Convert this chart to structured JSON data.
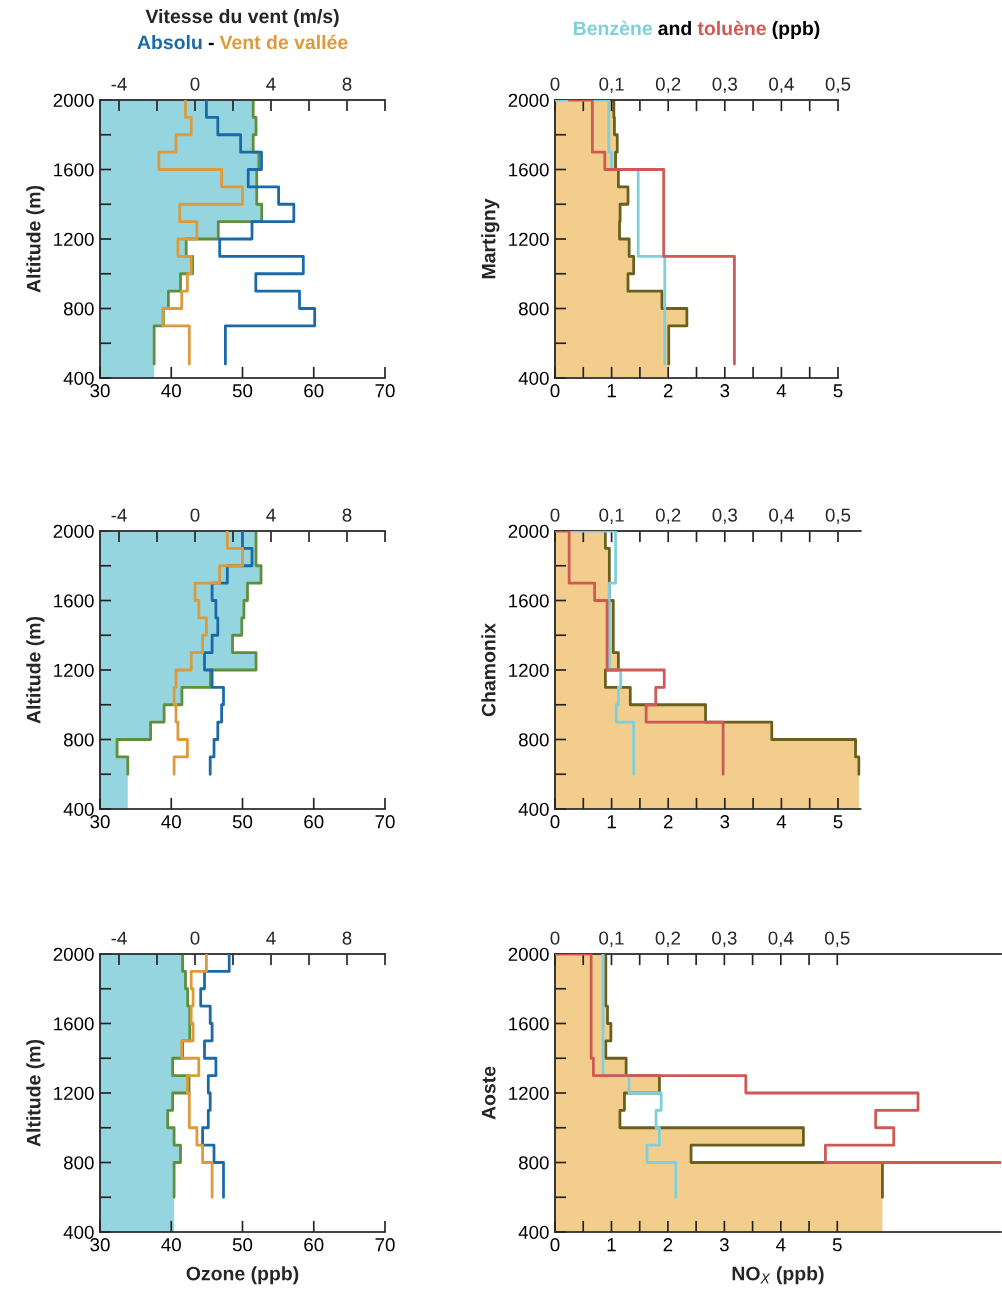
{
  "chart_data": [
    {
      "type": "step",
      "orientation": "horizontal",
      "x2label": "Vitesse du vent (m/s)",
      "ylabel": "Altitude (m)",
      "legend": "top",
      "annotations": [
        "-"
      ],
      "xlim": [
        30,
        70
      ],
      "xticks": [
        30,
        40,
        50,
        60,
        70
      ],
      "x2lim": [
        -5,
        10
      ],
      "x2ticks": [
        -4,
        {
          "value": -2,
          "label": null
        },
        0,
        {
          "value": 2,
          "label": null
        },
        4,
        {
          "value": 6,
          "label": null
        },
        8,
        {
          "value": 10,
          "label": null
        }
      ],
      "ylim": [
        400,
        2000
      ],
      "yticks": [
        400,
        {
          "value": 600,
          "label": null
        },
        800,
        {
          "value": 1000,
          "label": null
        },
        1200,
        {
          "value": 1400,
          "label": null
        },
        1600,
        {
          "value": 1800,
          "label": null
        },
        2000
      ],
      "series": [
        {
          "type": "area",
          "color": "#95d5e0",
          "values": [
            51.5,
            51.9,
            51.5,
            52.3,
            52.0,
            52.0,
            52.7,
            46.6,
            42.1,
            43.0,
            41.3,
            39.6,
            38.9,
            37.6,
            37.6
          ],
          "x": [
            2000,
            1900,
            1800,
            1700,
            1600,
            1500,
            1400,
            1300,
            1200,
            1100,
            1000,
            900,
            800,
            700,
            400
          ]
        },
        {
          "color": "#5f8f3a",
          "values": [
            51.5,
            51.9,
            51.5,
            52.3,
            52.0,
            52.0,
            52.7,
            46.6,
            42.1,
            43.0,
            41.3,
            39.6,
            38.9,
            37.6,
            37.6
          ],
          "x": [
            2000,
            1900,
            1800,
            1700,
            1600,
            1500,
            1400,
            1300,
            1200,
            1100,
            1000,
            900,
            800,
            700,
            480
          ]
        },
        {
          "name": "Absolu",
          "axis": "x2",
          "color": "#1a6aa8",
          "values": [
            0.6,
            1.2,
            2.4,
            3.5,
            2.8,
            4.4,
            5.2,
            3.0,
            1.3,
            5.7,
            3.2,
            5.5,
            6.3,
            1.6,
            1.6
          ],
          "x": [
            2000,
            1900,
            1800,
            1700,
            1600,
            1500,
            1400,
            1300,
            1200,
            1100,
            1000,
            900,
            800,
            700,
            480
          ]
        },
        {
          "name": "Vent de vallée",
          "axis": "x2",
          "color": "#dd9a3c",
          "values": [
            -0.5,
            -0.2,
            -1.0,
            -1.9,
            1.4,
            2.5,
            -0.8,
            0.1,
            -0.9,
            -0.2,
            -0.4,
            -0.7,
            -1.7,
            -0.3,
            -0.3
          ],
          "x": [
            2000,
            1900,
            1800,
            1700,
            1600,
            1500,
            1400,
            1300,
            1200,
            1100,
            1000,
            900,
            800,
            700,
            480
          ]
        }
      ]
    },
    {
      "type": "step",
      "orientation": "horizontal",
      "ylabel": "Martigny",
      "legend": "top",
      "annotations": [
        "and",
        "(ppb)"
      ],
      "xlim": [
        0,
        5
      ],
      "xticks": [
        0,
        {
          "value": 0.5,
          "label": null
        },
        1,
        {
          "value": 1.5,
          "label": null
        },
        2,
        {
          "value": 2.5,
          "label": null
        },
        3,
        {
          "value": 3.5,
          "label": null
        },
        4,
        {
          "value": 4.5,
          "label": null
        },
        5
      ],
      "x2lim": [
        0,
        0.5
      ],
      "x2ticks": [
        0,
        {
          "value": 0.05,
          "label": null
        },
        {
          "value": 0.1,
          "label": "0,1"
        },
        {
          "value": 0.15,
          "label": null
        },
        {
          "value": 0.2,
          "label": "0,2"
        },
        {
          "value": 0.25,
          "label": null
        },
        {
          "value": 0.3,
          "label": "0,3"
        },
        {
          "value": 0.35,
          "label": null
        },
        {
          "value": 0.4,
          "label": "0,4"
        },
        {
          "value": 0.45,
          "label": null
        },
        {
          "value": 0.5,
          "label": "0,5"
        }
      ],
      "ylim": [
        400,
        2000
      ],
      "yticks": [
        400,
        {
          "value": 600,
          "label": null
        },
        800,
        {
          "value": 1000,
          "label": null
        },
        1200,
        {
          "value": 1400,
          "label": null
        },
        1600,
        {
          "value": 1800,
          "label": null
        },
        2000
      ],
      "series": [
        {
          "type": "area",
          "color": "#f3cd8c",
          "values": [
            1.04,
            1.05,
            1.1,
            1.07,
            1.12,
            1.29,
            1.15,
            1.14,
            1.31,
            1.39,
            1.29,
            1.89,
            2.33,
            2.01,
            2.01
          ],
          "x": [
            2000,
            1900,
            1800,
            1700,
            1600,
            1500,
            1400,
            1300,
            1200,
            1100,
            1000,
            900,
            800,
            700,
            400
          ]
        },
        {
          "color": "#6b5f1e",
          "values": [
            1.04,
            1.05,
            1.1,
            1.07,
            1.12,
            1.29,
            1.15,
            1.14,
            1.31,
            1.39,
            1.29,
            1.89,
            2.33,
            2.01,
            2.01
          ],
          "x": [
            2000,
            1900,
            1800,
            1700,
            1600,
            1500,
            1400,
            1300,
            1200,
            1100,
            1000,
            900,
            800,
            700,
            480
          ]
        },
        {
          "name": "Benzène",
          "axis": "x2",
          "color": "#7fcfdc",
          "values": [
            0,
            0.095,
            0.1,
            0.147,
            0.194,
            0.194
          ],
          "x": [
            2000,
            2000,
            1700,
            1600,
            1100,
            480
          ]
        },
        {
          "name": "toluène",
          "axis": "x2",
          "color": "#cf5a55",
          "values": [
            0.025,
            0.066,
            0.088,
            0.192,
            0.317,
            0.317
          ],
          "x": [
            2000,
            2000,
            1700,
            1600,
            1100,
            480
          ]
        }
      ]
    },
    {
      "type": "step",
      "orientation": "horizontal",
      "ylabel": "Altitude (m)",
      "xlim": [
        30,
        70
      ],
      "xticks": [
        30,
        40,
        50,
        60,
        70
      ],
      "x2lim": [
        -5,
        10
      ],
      "x2ticks": [
        -4,
        {
          "value": -2,
          "label": null
        },
        0,
        {
          "value": 2,
          "label": null
        },
        4,
        {
          "value": 6,
          "label": null
        },
        8,
        {
          "value": 10,
          "label": null
        }
      ],
      "ylim": [
        400,
        2000
      ],
      "yticks": [
        400,
        {
          "value": 600,
          "label": null
        },
        800,
        {
          "value": 1000,
          "label": null
        },
        1200,
        {
          "value": 1400,
          "label": null
        },
        1600,
        {
          "value": 1800,
          "label": null
        },
        2000
      ],
      "series": [
        {
          "type": "area",
          "color": "#95d5e0",
          "values": [
            51.9,
            52.6,
            50.7,
            50.2,
            49.9,
            48.6,
            51.9,
            45.5,
            41.5,
            39.0,
            37.1,
            32.4,
            33.9,
            33.9
          ],
          "x": [
            2000,
            1800,
            1700,
            1600,
            1500,
            1400,
            1300,
            1200,
            1100,
            1000,
            900,
            800,
            700,
            400
          ]
        },
        {
          "color": "#5f8f3a",
          "values": [
            51.9,
            52.6,
            50.7,
            50.2,
            49.9,
            48.6,
            51.9,
            45.5,
            41.5,
            39.0,
            37.1,
            32.4,
            33.9,
            33.9
          ],
          "x": [
            2000,
            1800,
            1700,
            1600,
            1500,
            1400,
            1300,
            1200,
            1100,
            1000,
            900,
            800,
            700,
            600
          ]
        },
        {
          "axis": "x2",
          "color": "#1a6aa8",
          "values": [
            2.5,
            3.0,
            1.7,
            0.9,
            1.1,
            1.2,
            0.9,
            0.5,
            0.9,
            1.5,
            1.4,
            1.2,
            1.0,
            0.8,
            0.8
          ],
          "x": [
            2000,
            1900,
            1800,
            1700,
            1600,
            1500,
            1400,
            1300,
            1200,
            1100,
            1000,
            900,
            800,
            700,
            600
          ]
        },
        {
          "axis": "x2",
          "color": "#dd9a3c",
          "values": [
            1.7,
            2.5,
            1.3,
            0.0,
            0.2,
            0.6,
            0.4,
            -0.2,
            -1.0,
            -1.1,
            -1.0,
            -0.9,
            -0.4,
            -1.1,
            -1.1
          ],
          "x": [
            2000,
            1900,
            1800,
            1700,
            1600,
            1500,
            1400,
            1300,
            1200,
            1100,
            1000,
            900,
            800,
            700,
            600
          ]
        }
      ]
    },
    {
      "type": "step",
      "orientation": "horizontal",
      "ylabel": "Chamonix",
      "xlim": [
        0,
        5.4
      ],
      "xticks": [
        0,
        {
          "value": 0.5,
          "label": null
        },
        1,
        {
          "value": 1.5,
          "label": null
        },
        2,
        {
          "value": 2.5,
          "label": null
        },
        3,
        {
          "value": 3.5,
          "label": null
        },
        4,
        {
          "value": 4.5,
          "label": null
        },
        5
      ],
      "x2lim": [
        0,
        0.54
      ],
      "x2ticks": [
        0,
        {
          "value": 0.05,
          "label": null
        },
        {
          "value": 0.1,
          "label": "0,1"
        },
        {
          "value": 0.15,
          "label": null
        },
        {
          "value": 0.2,
          "label": "0,2"
        },
        {
          "value": 0.25,
          "label": null
        },
        {
          "value": 0.3,
          "label": "0,3"
        },
        {
          "value": 0.35,
          "label": null
        },
        {
          "value": 0.4,
          "label": "0,4"
        },
        {
          "value": 0.45,
          "label": null
        },
        {
          "value": 0.5,
          "label": "0,5"
        }
      ],
      "ylim": [
        400,
        2000
      ],
      "yticks": [
        400,
        {
          "value": 600,
          "label": null
        },
        800,
        {
          "value": 1000,
          "label": null
        },
        1200,
        {
          "value": 1400,
          "label": null
        },
        1600,
        {
          "value": 1800,
          "label": null
        },
        2000
      ],
      "series": [
        {
          "type": "area",
          "color": "#f3cd8c",
          "values": [
            0.89,
            0.96,
            1.03,
            1.12,
            0.89,
            1.33,
            2.66,
            3.83,
            5.31,
            5.37,
            5.37
          ],
          "x": [
            2000,
            1900,
            1600,
            1300,
            1200,
            1100,
            1000,
            900,
            800,
            700,
            400
          ]
        },
        {
          "color": "#6b5f1e",
          "values": [
            0.89,
            0.96,
            1.03,
            1.12,
            0.89,
            1.33,
            2.66,
            3.83,
            5.31,
            5.37,
            5.37
          ],
          "x": [
            2000,
            1900,
            1600,
            1300,
            1200,
            1100,
            1000,
            900,
            800,
            700,
            600
          ]
        },
        {
          "axis": "x2",
          "color": "#7fcfdc",
          "values": [
            0.026,
            0.107,
            0.096,
            0.116,
            0.112,
            0.108,
            0.139,
            0.139
          ],
          "x": [
            2000,
            2000,
            1700,
            1200,
            1100,
            1000,
            900,
            600
          ]
        },
        {
          "axis": "x2",
          "color": "#cf5a55",
          "values": [
            0,
            0.025,
            0.07,
            0.092,
            0.193,
            0.178,
            0.161,
            0.297,
            0.297
          ],
          "x": [
            2000,
            2000,
            1700,
            1600,
            1200,
            1100,
            1000,
            900,
            600
          ]
        }
      ]
    },
    {
      "type": "step",
      "orientation": "horizontal",
      "ylabel": "Altitude (m)",
      "xlabel": "Ozone (ppb)",
      "xlim": [
        30,
        70
      ],
      "xticks": [
        30,
        40,
        50,
        60,
        70
      ],
      "x2lim": [
        -5,
        10
      ],
      "x2ticks": [
        -4,
        {
          "value": -2,
          "label": null
        },
        0,
        {
          "value": 2,
          "label": null
        },
        4,
        {
          "value": 6,
          "label": null
        },
        8,
        {
          "value": 10,
          "label": null
        }
      ],
      "ylim": [
        400,
        2000
      ],
      "yticks": [
        400,
        {
          "value": 600,
          "label": null
        },
        800,
        {
          "value": 1000,
          "label": null
        },
        1200,
        {
          "value": 1400,
          "label": null
        },
        1600,
        {
          "value": 1800,
          "label": null
        },
        2000
      ],
      "series": [
        {
          "type": "area",
          "color": "#95d5e0",
          "values": [
            41.6,
            42.0,
            42.3,
            42.6,
            42.6,
            41.6,
            40.2,
            42.5,
            40.2,
            39.5,
            40.4,
            41.3,
            40.4,
            40.4
          ],
          "x": [
            2000,
            1900,
            1800,
            1700,
            1600,
            1500,
            1400,
            1300,
            1200,
            1100,
            1000,
            900,
            800,
            400
          ]
        },
        {
          "color": "#5f8f3a",
          "values": [
            41.6,
            42.0,
            42.3,
            42.6,
            42.6,
            41.6,
            40.2,
            42.5,
            40.2,
            39.5,
            40.4,
            41.3,
            40.4,
            40.4
          ],
          "x": [
            2000,
            1900,
            1800,
            1700,
            1600,
            1500,
            1400,
            1300,
            1200,
            1100,
            1000,
            900,
            800,
            600
          ]
        },
        {
          "axis": "x2",
          "color": "#1a6aa8",
          "values": [
            1.8,
            0.5,
            0.3,
            0.8,
            0.9,
            0.5,
            1.1,
            0.7,
            0.8,
            0.7,
            0.4,
            1.0,
            1.5,
            1.5
          ],
          "x": [
            2000,
            1900,
            1800,
            1700,
            1600,
            1500,
            1400,
            1300,
            1200,
            1100,
            1000,
            900,
            800,
            600
          ]
        },
        {
          "axis": "x2",
          "color": "#dd9a3c",
          "values": [
            0.6,
            -0.2,
            -0.1,
            -0.2,
            -0.1,
            -0.7,
            0.2,
            -0.4,
            -0.3,
            -0.3,
            0.1,
            0.4,
            0.9,
            0.9
          ],
          "x": [
            2000,
            1900,
            1800,
            1700,
            1600,
            1500,
            1400,
            1300,
            1200,
            1100,
            1000,
            900,
            800,
            600
          ]
        }
      ]
    },
    {
      "type": "step",
      "orientation": "horizontal",
      "ylabel": "Aoste",
      "xlabel": "NO$_{X}$ (ppb)",
      "xlim": [
        0,
        7.9
      ],
      "xticks": [
        0,
        {
          "value": 0.5,
          "label": null
        },
        1,
        {
          "value": 1.5,
          "label": null
        },
        2,
        {
          "value": 2.5,
          "label": null
        },
        3,
        {
          "value": 3.5,
          "label": null
        },
        4,
        {
          "value": 4.5,
          "label": null
        },
        5
      ],
      "x2lim": [
        0,
        0.79
      ],
      "x2ticks": [
        0,
        {
          "value": 0.05,
          "label": null
        },
        {
          "value": 0.1,
          "label": "0,1"
        },
        {
          "value": 0.15,
          "label": null
        },
        {
          "value": 0.2,
          "label": "0,2"
        },
        {
          "value": 0.25,
          "label": null
        },
        {
          "value": 0.3,
          "label": "0,3"
        },
        {
          "value": 0.35,
          "label": null
        },
        {
          "value": 0.4,
          "label": "0,4"
        },
        {
          "value": 0.45,
          "label": null
        },
        {
          "value": 0.5,
          "label": "0,5"
        }
      ],
      "ylim": [
        400,
        2000
      ],
      "yticks": [
        400,
        {
          "value": 600,
          "label": null
        },
        800,
        {
          "value": 1000,
          "label": null
        },
        1200,
        {
          "value": 1400,
          "label": null
        },
        1600,
        {
          "value": 1800,
          "label": null
        },
        2000
      ],
      "series": [
        {
          "type": "area",
          "color": "#f3cd8c",
          "values": [
            0.9,
            0.93,
            0.99,
            0.9,
            1.26,
            1.85,
            1.23,
            1.15,
            4.4,
            2.41,
            5.8,
            5.8
          ],
          "x": [
            2000,
            1700,
            1600,
            1500,
            1400,
            1300,
            1200,
            1100,
            1000,
            900,
            800,
            400
          ]
        },
        {
          "color": "#6b5f1e",
          "values": [
            0.9,
            0.93,
            0.99,
            0.9,
            1.26,
            1.85,
            1.23,
            1.15,
            4.4,
            2.41,
            5.8,
            5.8
          ],
          "x": [
            2000,
            1700,
            1600,
            1500,
            1400,
            1300,
            1200,
            1100,
            1000,
            900,
            800,
            600
          ]
        },
        {
          "axis": "x2",
          "color": "#7fcfdc",
          "values": [
            0.085,
            0.131,
            0.188,
            0.179,
            0.185,
            0.163,
            0.214,
            0.214
          ],
          "x": [
            2000,
            1300,
            1200,
            1100,
            1000,
            900,
            800,
            600
          ]
        },
        {
          "axis": "x2",
          "color": "#cf5a55",
          "values": [
            0,
            0.064,
            0.068,
            0.338,
            0.643,
            0.568,
            0.6,
            0.479,
            0.79
          ],
          "x": [
            2000,
            2000,
            1400,
            1300,
            1200,
            1100,
            1000,
            900,
            800
          ]
        }
      ]
    }
  ]
}
